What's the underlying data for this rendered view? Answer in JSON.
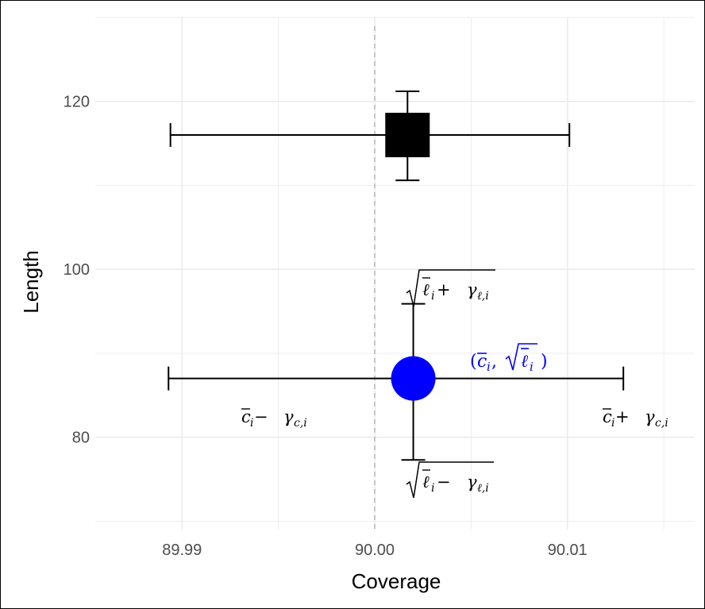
{
  "chart_data": {
    "type": "scatter",
    "xlabel": "Coverage",
    "ylabel": "Length",
    "xlim": [
      89.9855,
      90.0166
    ],
    "ylim": [
      69.0,
      130.0
    ],
    "x_ticks": [
      89.99,
      90.0,
      90.01
    ],
    "x_tick_labels": [
      "89.99",
      "90.00",
      "90.01"
    ],
    "y_ticks": [
      80,
      100,
      120
    ],
    "y_tick_labels": [
      "80",
      "100",
      "120"
    ],
    "grid": true,
    "reference_vline": 90.0,
    "colors": {
      "square": "#000000",
      "circle": "#0000ff",
      "errorbar": "#000000",
      "grid": "#ebebeb",
      "ref_line": "#b3b3b3"
    },
    "points": [
      {
        "marker": "square",
        "x": 90.0017,
        "y": 116.0,
        "x_err": [
          89.9894,
          90.0101
        ],
        "y_err": [
          110.6,
          121.2
        ]
      },
      {
        "marker": "circle",
        "x": 90.002,
        "y": 87.0,
        "x_err": [
          89.9893,
          90.0129
        ],
        "y_err": [
          77.3,
          95.9
        ]
      }
    ],
    "annotations": {
      "point": {
        "p1": "(",
        "cbar": "c",
        "sub_i": "i",
        "comma": ", ",
        "ellbar": "ℓ",
        "p2": ")"
      },
      "left": {
        "cbar": "c",
        "sub_i": "i",
        "op": " − ",
        "gamma": "γ",
        "sub": "c,i"
      },
      "right": {
        "cbar": "c",
        "sub_i": "i",
        "op": " + ",
        "gamma": "γ",
        "sub": "c,i"
      },
      "top": {
        "ellbar": "ℓ",
        "sub_i": "i",
        "op": " + ",
        "gamma": "γ",
        "sub": "ℓ,i"
      },
      "bottom": {
        "ellbar": "ℓ",
        "sub_i": "i",
        "op": " − ",
        "gamma": "γ",
        "sub": "ℓ,i"
      }
    }
  }
}
